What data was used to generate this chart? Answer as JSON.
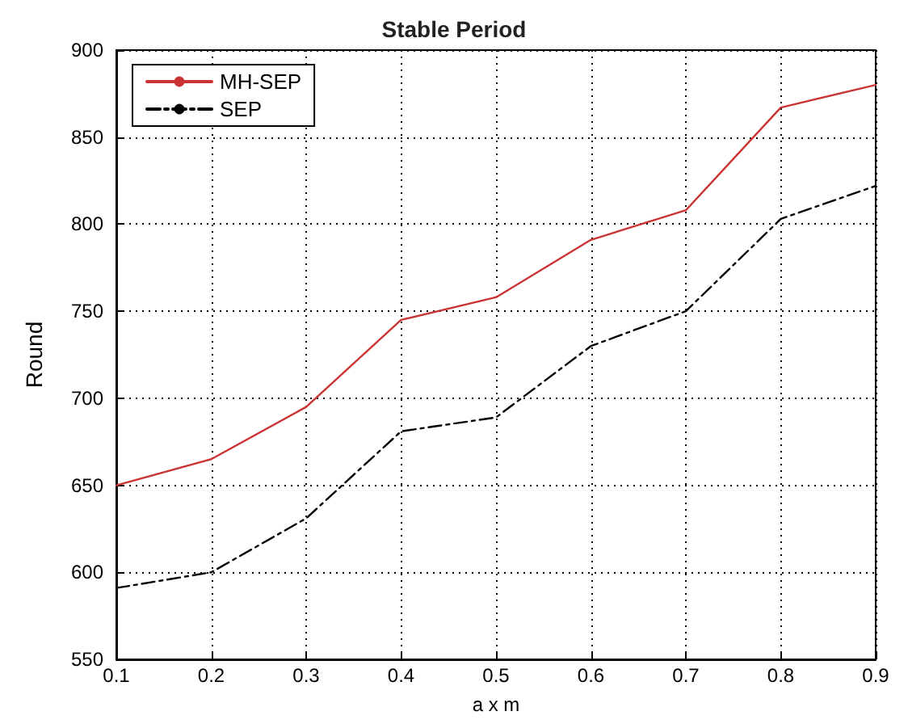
{
  "chart_data": {
    "type": "line",
    "title": "Stable Period",
    "xlabel": "a x m",
    "ylabel": "Round",
    "x": [
      0.1,
      0.2,
      0.3,
      0.4,
      0.5,
      0.6,
      0.7,
      0.8,
      0.9
    ],
    "series": [
      {
        "name": "MH-SEP",
        "color": "#cc3333",
        "line_style": "solid",
        "values": [
          650,
          665,
          695,
          745,
          758,
          791,
          808,
          867,
          880
        ]
      },
      {
        "name": "SEP",
        "color": "#000000",
        "line_style": "dashed",
        "values": [
          591,
          600,
          631,
          681,
          689,
          730,
          750,
          803,
          822
        ]
      }
    ],
    "xlim": [
      0.1,
      0.9
    ],
    "xticks": [
      0.1,
      0.2,
      0.3,
      0.4,
      0.5,
      0.6,
      0.7,
      0.8,
      0.9
    ],
    "ylim": [
      550,
      900
    ],
    "yticks": [
      550,
      600,
      650,
      700,
      750,
      800,
      850,
      900
    ],
    "grid": true,
    "legend": "top left",
    "marker": "none"
  }
}
